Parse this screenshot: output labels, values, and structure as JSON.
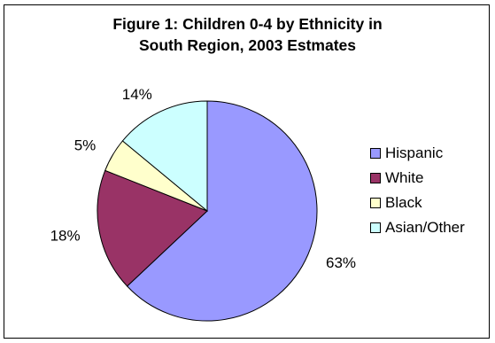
{
  "chart_data": {
    "type": "pie",
    "title_lines": [
      "Figure 1: Children 0-4 by Ethnicity in",
      "South Region, 2003 Estmates"
    ],
    "categories": [
      "Hispanic",
      "White",
      "Black",
      "Asian/Other"
    ],
    "values": [
      63,
      18,
      5,
      14
    ],
    "labels": [
      "63%",
      "18%",
      "5%",
      "14%"
    ],
    "colors": [
      "#9999ff",
      "#993366",
      "#ffffcc",
      "#ccffff"
    ],
    "legend_position": "right"
  }
}
